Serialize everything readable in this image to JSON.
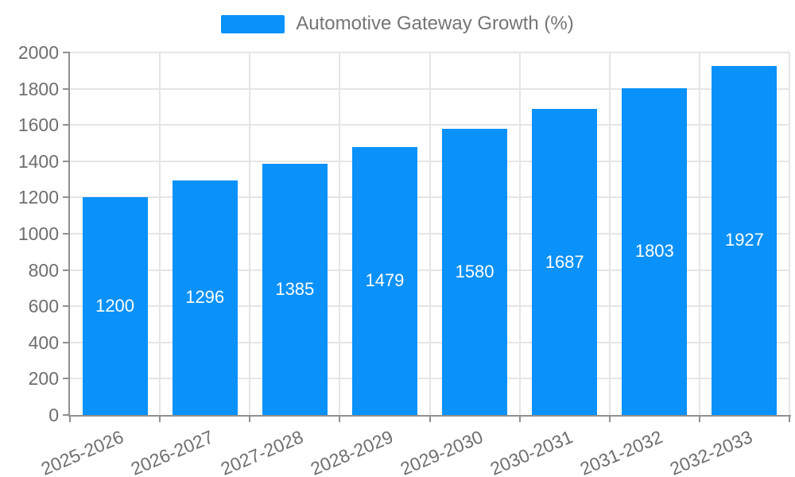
{
  "legend": {
    "label": "Automotive Gateway Growth (%)"
  },
  "colors": {
    "bar": "#0a91fa",
    "gridline": "#e5e5e5",
    "axis": "#909090",
    "tick_label": "#6e6e6e",
    "legend_text": "#757575",
    "value_label": "#ffffff",
    "background": "#ffffff"
  },
  "chart_data": {
    "type": "bar",
    "title": "Automotive Gateway Growth (%)",
    "categories": [
      "2025-2026",
      "2026-2027",
      "2027-2028",
      "2028-2029",
      "2029-2030",
      "2030-2031",
      "2031-2032",
      "2032-2033"
    ],
    "values": [
      1200,
      1296,
      1385,
      1479,
      1580,
      1687,
      1803,
      1927
    ],
    "xlabel": "",
    "ylabel": "",
    "ylim": [
      0,
      2000
    ],
    "yticks": [
      0,
      200,
      400,
      600,
      800,
      1000,
      1200,
      1400,
      1600,
      1800,
      2000
    ],
    "grid": true,
    "legend_position": "top-center",
    "value_label_position": "inside-middle",
    "x_tick_label_rotation_deg": -23
  }
}
